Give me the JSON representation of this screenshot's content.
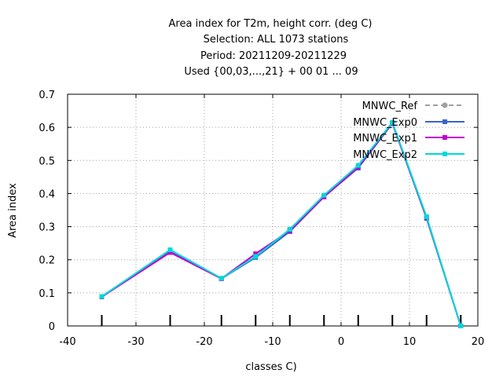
{
  "chart_data": {
    "type": "line",
    "title_lines": [
      "Area index  for T2m, height corr. (deg C)",
      "Selection: ALL    1073 stations",
      "Period: 20211209-20211229",
      "Used {00,03,...,21} + 00 01 ... 09"
    ],
    "xlabel": "classes C)",
    "ylabel": "Area index",
    "xlim": [
      -40,
      20
    ],
    "ylim": [
      0,
      0.7
    ],
    "xticks": [
      -40,
      -30,
      -20,
      -10,
      0,
      10,
      20
    ],
    "yticks": [
      0,
      0.1,
      0.2,
      0.3,
      0.4,
      0.5,
      0.6,
      0.7
    ],
    "x_minor_ticks": [
      -35,
      -25,
      -17.5,
      -12.5,
      -7.5,
      -2.5,
      2.5,
      7.5,
      12.5,
      17.5
    ],
    "grid": true,
    "legend_position": "top-right",
    "x": [
      -35,
      -25,
      -17.5,
      -12.5,
      -7.5,
      -2.5,
      2.5,
      7.5,
      12.5,
      17.5
    ],
    "series": [
      {
        "name": "MNWC_Ref",
        "color": "#a0a0a0",
        "dashed": true,
        "marker": "circle",
        "values": [
          null,
          null,
          null,
          null,
          null,
          null,
          null,
          null,
          null,
          null
        ]
      },
      {
        "name": "MNWC_Exp0",
        "color": "#3b64c8",
        "dashed": false,
        "marker": "square",
        "values": [
          0.088,
          0.225,
          0.143,
          0.207,
          0.285,
          0.39,
          0.477,
          0.612,
          0.325,
          0.0
        ]
      },
      {
        "name": "MNWC_Exp1",
        "color": "#c000d0",
        "dashed": false,
        "marker": "square",
        "values": [
          0.088,
          0.222,
          0.143,
          0.218,
          0.288,
          0.39,
          0.48,
          0.613,
          0.328,
          0.0
        ]
      },
      {
        "name": "MNWC_Exp2",
        "color": "#00d8d8",
        "dashed": false,
        "marker": "square",
        "values": [
          0.089,
          0.23,
          0.144,
          0.21,
          0.292,
          0.395,
          0.485,
          0.615,
          0.33,
          0.0
        ]
      }
    ]
  }
}
